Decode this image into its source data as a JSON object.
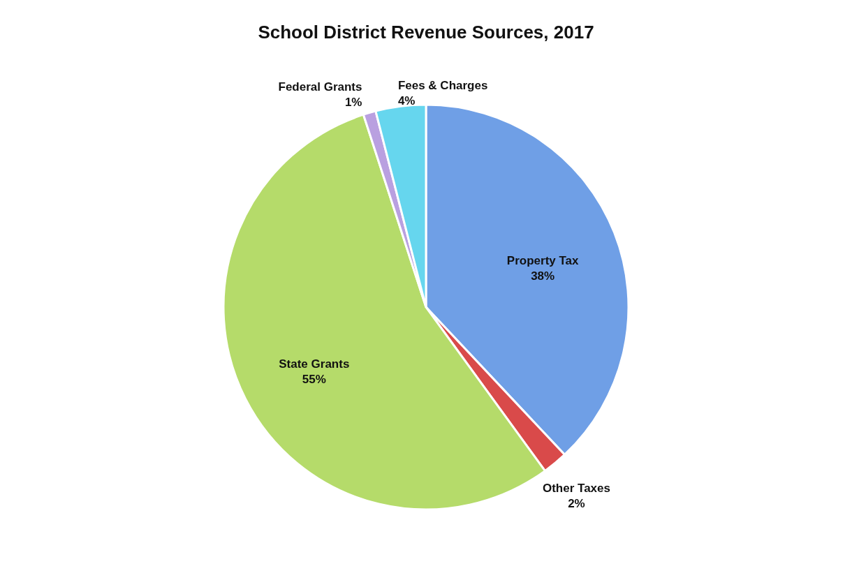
{
  "chart_data": {
    "type": "pie",
    "title": "School District Revenue Sources, 2017",
    "categories": [
      "Property Tax",
      "Other Taxes",
      "State Grants",
      "Federal Grants",
      "Fees & Charges"
    ],
    "values": [
      38,
      2,
      55,
      1,
      4
    ],
    "value_labels": [
      "38%",
      "2%",
      "55%",
      "1%",
      "4%"
    ],
    "colors": [
      "#6f9fe6",
      "#d94a4a",
      "#b5db6a",
      "#b9a0e0",
      "#66d6ee"
    ],
    "legend": false
  }
}
